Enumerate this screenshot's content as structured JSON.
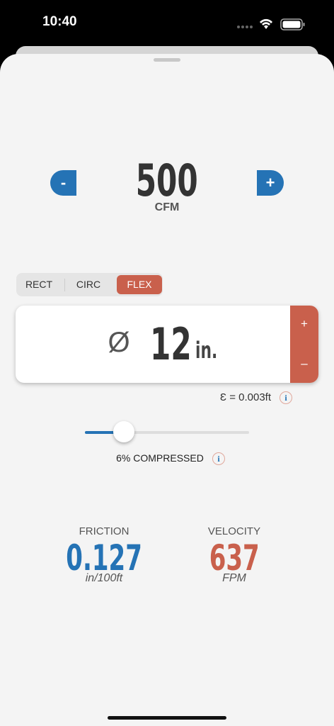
{
  "status_bar": {
    "time": "10:40"
  },
  "flow": {
    "decrement": "-",
    "value": "500",
    "unit": "CFM",
    "increment": "+"
  },
  "shape_tabs": [
    "RECT",
    "CIRC",
    "FLEX"
  ],
  "selected_tab": 2,
  "duct": {
    "symbol": "Ø",
    "size": "12",
    "unit": "in.",
    "increase": "+",
    "decrease": "–"
  },
  "roughness": {
    "label": "Ɛ = 0.003ft",
    "info": "i"
  },
  "compression": {
    "label": "6% COMPRESSED",
    "info": "i"
  },
  "results": [
    {
      "label": "FRICTION",
      "value": "0.127",
      "unit": "in/100ft"
    },
    {
      "label": "VELOCITY",
      "value": "637",
      "unit": "FPM"
    }
  ]
}
